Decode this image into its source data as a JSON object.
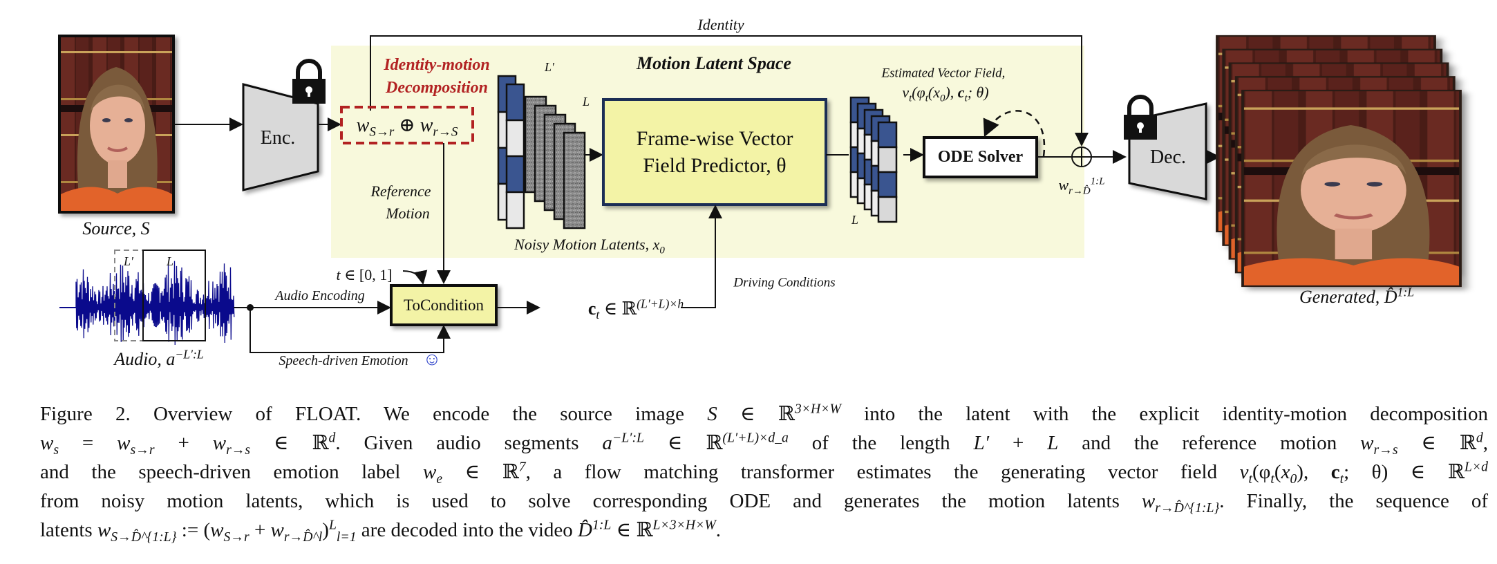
{
  "diagram": {
    "identity_label": "Identity",
    "motion_latent_space_title": "Motion Latent Space",
    "decomposition_title_line1": "Identity-motion",
    "decomposition_title_line2": "Decomposition",
    "decomposition_formula": [
      {
        "i": "w"
      },
      {
        "sub": "S→r"
      },
      {
        "t": " ⊕ "
      },
      {
        "i": "w"
      },
      {
        "sub": "r→S"
      }
    ],
    "encoder_label": "Enc.",
    "decoder_label": "Dec.",
    "source_caption": [
      {
        "t": "Source, "
      },
      {
        "i": "S"
      }
    ],
    "reference_motion_line1": "Reference",
    "reference_motion_line2": "Motion",
    "noisy_latents_label": [
      {
        "t": "Noisy Motion Latents, "
      },
      {
        "i": "x"
      },
      {
        "sub": "0"
      }
    ],
    "predictor_label_line1": "Frame-wise Vector",
    "predictor_label_line2": "Field Predictor, θ",
    "estimated_field_line1": "Estimated Vector Field,",
    "estimated_field_line2": [
      {
        "i": "v"
      },
      {
        "sub": "t"
      },
      {
        "t": "(φ"
      },
      {
        "sub": "t"
      },
      {
        "t": "("
      },
      {
        "i": "x"
      },
      {
        "sub": "0"
      },
      {
        "t": "), "
      },
      {
        "b": "c"
      },
      {
        "sub": "t"
      },
      {
        "t": "; θ)"
      }
    ],
    "ode_solver_label": "ODE Solver",
    "ode_output_label": [
      {
        "i": "w"
      },
      {
        "sub": "r→D̂"
      },
      {
        "sup": "1:L"
      }
    ],
    "generated_caption": [
      {
        "t": "Generated, "
      },
      {
        "i": "D̂"
      },
      {
        "sup": "1:L"
      }
    ],
    "stack_length_labels": {
      "noisy_prefix": "L′",
      "noisy_main": "L",
      "output": "L"
    },
    "audio_window_labels": {
      "prefix": "L′",
      "main": "L"
    },
    "audio_caption": [
      {
        "t": "Audio, "
      },
      {
        "i": "a"
      },
      {
        "sup": "−L′:L"
      }
    ],
    "time_label": [
      {
        "i": "t"
      },
      {
        "t": " ∈ [0, 1]"
      }
    ],
    "audio_encoding_label": "Audio Encoding",
    "tocondition_label": "ToCondition",
    "speech_emotion_label": "Speech-driven Emotion",
    "emotion_icon": "smiley-face-icon",
    "condition_formula": [
      {
        "b": "c"
      },
      {
        "sub": "t"
      },
      {
        "t": " ∈ ℝ"
      },
      {
        "sup": "(L′+L)×h"
      }
    ],
    "driving_conditions_label": "Driving Conditions",
    "lock_icon": "padlock-icon",
    "colors": {
      "latent_space_bg": "#f8f9dc",
      "predictor_fill": "#f3f3a6",
      "predictor_border": "#1f2f55",
      "latent_blue": "#3a5590",
      "decomposition_red": "#b22222",
      "waveform_blue": "#0a0a8c",
      "encoder_gray": "#d9d9d9"
    }
  },
  "caption": {
    "lines": [
      [
        {
          "t": "Figure 2. Overview of FLOAT. We encode the source image "
        },
        {
          "i": "S"
        },
        {
          "t": " ∈ ℝ"
        },
        {
          "sup": "3×H×W"
        },
        {
          "t": " into the latent with the explicit identity-motion decomposition"
        }
      ],
      [
        {
          "i": "w"
        },
        {
          "sub": "s"
        },
        {
          "t": " = "
        },
        {
          "i": "w"
        },
        {
          "sub": "s→r"
        },
        {
          "t": " + "
        },
        {
          "i": "w"
        },
        {
          "sub": "r→s"
        },
        {
          "t": " ∈ ℝ"
        },
        {
          "sup": "d"
        },
        {
          "t": ". Given audio segments "
        },
        {
          "i": "a"
        },
        {
          "sup": "−L′:L"
        },
        {
          "t": " ∈ ℝ"
        },
        {
          "sup": "(L′+L)×d_a"
        },
        {
          "t": " of the length "
        },
        {
          "i": "L′"
        },
        {
          "t": " + "
        },
        {
          "i": "L"
        },
        {
          "t": " and the reference motion "
        },
        {
          "i": "w"
        },
        {
          "sub": "r→s"
        },
        {
          "t": " ∈ ℝ"
        },
        {
          "sup": "d"
        },
        {
          "t": ","
        }
      ],
      [
        {
          "t": "and the speech-driven emotion label "
        },
        {
          "i": "w"
        },
        {
          "sub": "e"
        },
        {
          "t": " ∈ ℝ"
        },
        {
          "sup": "7"
        },
        {
          "t": ", a flow matching transformer estimates the generating vector field "
        },
        {
          "i": "v"
        },
        {
          "sub": "t"
        },
        {
          "t": "(φ"
        },
        {
          "sub": "t"
        },
        {
          "t": "("
        },
        {
          "i": "x"
        },
        {
          "sub": "0"
        },
        {
          "t": "), "
        },
        {
          "b": "c"
        },
        {
          "sub": "t"
        },
        {
          "t": "; θ) ∈ ℝ"
        },
        {
          "sup": "L×d"
        }
      ],
      [
        {
          "t": "from noisy motion latents, which is used to solve corresponding ODE and generates the motion latents "
        },
        {
          "i": "w"
        },
        {
          "sub": "r→D̂^{1:L}"
        },
        {
          "t": ". Finally, the sequence of"
        }
      ],
      [
        {
          "t": "latents "
        },
        {
          "i": "w"
        },
        {
          "sub": "S→D̂^{1:L}"
        },
        {
          "t": " := ("
        },
        {
          "i": "w"
        },
        {
          "sub": "S→r"
        },
        {
          "t": " + "
        },
        {
          "i": "w"
        },
        {
          "sub": "r→D̂^l"
        },
        {
          "t": ")"
        },
        {
          "sup": "L"
        },
        {
          "sub": "l=1"
        },
        {
          "t": " are decoded into the video "
        },
        {
          "i": "D̂"
        },
        {
          "sup": "1:L"
        },
        {
          "t": " ∈ ℝ"
        },
        {
          "sup": "L×3×H×W"
        },
        {
          "t": "."
        }
      ]
    ]
  }
}
